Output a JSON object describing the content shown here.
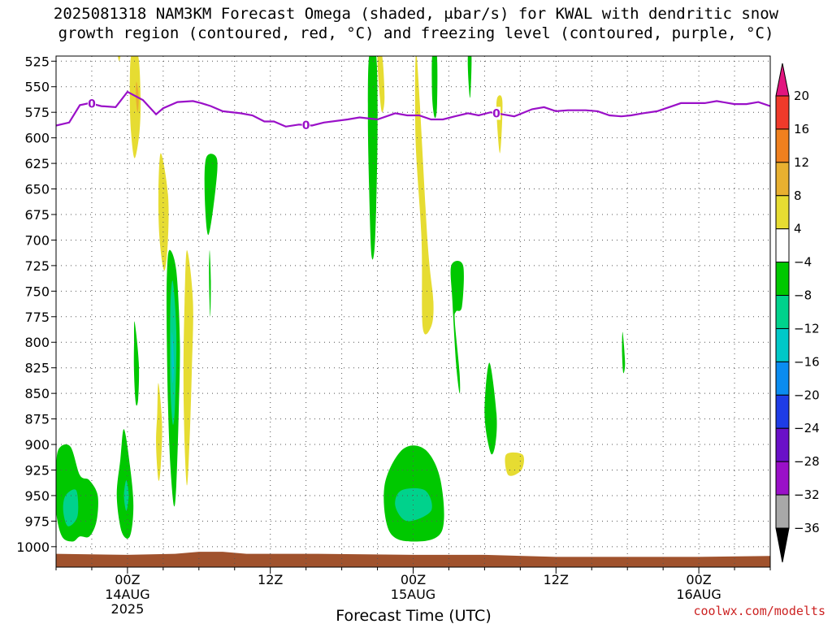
{
  "chart_data": {
    "type": "contour",
    "title": "2025081318 NAM3KM Forecast Omega (shaded, μbar/s) for KWAL with dendritic snow",
    "subtitle": "growth region (contoured, red, °C) and freezing level (contoured, purple, °C)",
    "xlabel": "Forecast Time (UTC)",
    "ylabel": "",
    "credit": "coolwx.com/modelts",
    "x_range_hours": [
      -6,
      54
    ],
    "y_range_mb": [
      520,
      1020
    ],
    "y_ticks": [
      525,
      550,
      575,
      600,
      625,
      650,
      675,
      700,
      725,
      750,
      775,
      800,
      825,
      850,
      875,
      900,
      925,
      950,
      975,
      1000
    ],
    "x_ticks": [
      {
        "hour": 0,
        "label1": "00Z",
        "label2": "14AUG",
        "label3": "2025"
      },
      {
        "hour": 12,
        "label1": "12Z",
        "label2": "",
        "label3": ""
      },
      {
        "hour": 24,
        "label1": "00Z",
        "label2": "15AUG",
        "label3": ""
      },
      {
        "hour": 36,
        "label1": "12Z",
        "label2": "",
        "label3": ""
      },
      {
        "hour": 48,
        "label1": "00Z",
        "label2": "16AUG",
        "label3": ""
      }
    ],
    "grid": true,
    "colorbar": {
      "position": "right",
      "levels": [
        20,
        16,
        12,
        8,
        4,
        -4,
        -8,
        -12,
        -16,
        -20,
        -24,
        -28,
        -32,
        -36
      ],
      "colors": [
        "#e2157f",
        "#f03a2a",
        "#f0801e",
        "#e8b030",
        "#e6dc32",
        "#ffffff",
        "#00c800",
        "#00d28c",
        "#00c8c8",
        "#0a8cf0",
        "#1e3ce6",
        "#6a10c8",
        "#9a10c8",
        "#a8a8a8",
        "#000000"
      ]
    },
    "freezing_level": {
      "label": "0",
      "color": "#9a10c8",
      "points": [
        [
          -6,
          588
        ],
        [
          -4.9,
          585
        ],
        [
          -4,
          568
        ],
        [
          -3.2,
          566
        ],
        [
          -2.2,
          569
        ],
        [
          -1,
          570
        ],
        [
          0,
          555
        ],
        [
          1.3,
          563
        ],
        [
          2.4,
          577
        ],
        [
          3,
          571
        ],
        [
          4.2,
          565
        ],
        [
          5.5,
          564
        ],
        [
          6.2,
          566
        ],
        [
          7,
          569
        ],
        [
          8,
          574
        ],
        [
          9.5,
          576
        ],
        [
          10.5,
          578
        ],
        [
          11.5,
          584
        ],
        [
          12.3,
          584
        ],
        [
          13.3,
          589
        ],
        [
          14.4,
          587
        ],
        [
          15.5,
          588
        ],
        [
          16.5,
          585
        ],
        [
          18.5,
          582
        ],
        [
          19.5,
          580
        ],
        [
          21,
          582
        ],
        [
          22.5,
          576
        ],
        [
          23.5,
          578
        ],
        [
          24.5,
          578
        ],
        [
          25.5,
          582
        ],
        [
          26.5,
          582
        ],
        [
          27.5,
          579
        ],
        [
          28.6,
          576
        ],
        [
          29.5,
          578
        ],
        [
          30.5,
          575
        ],
        [
          31.5,
          577
        ],
        [
          32.5,
          579
        ],
        [
          34,
          572
        ],
        [
          35,
          570
        ],
        [
          36,
          574
        ],
        [
          37,
          573
        ],
        [
          38.5,
          573
        ],
        [
          39.5,
          574
        ],
        [
          40.5,
          578
        ],
        [
          41.5,
          579
        ],
        [
          42.3,
          578
        ],
        [
          43.3,
          576
        ],
        [
          44.5,
          574
        ],
        [
          45.5,
          570
        ],
        [
          46.5,
          566
        ],
        [
          47.4,
          566
        ],
        [
          48.5,
          566
        ],
        [
          49.5,
          564
        ],
        [
          51,
          567
        ],
        [
          52,
          567
        ],
        [
          53,
          565
        ],
        [
          54,
          569
        ]
      ],
      "label_hours": [
        -3,
        15,
        31
      ]
    },
    "ground": {
      "color": "#a0522d",
      "top_mb": [
        [
          -6,
          1007
        ],
        [
          0,
          1008
        ],
        [
          4,
          1007
        ],
        [
          6,
          1005
        ],
        [
          8,
          1005
        ],
        [
          10,
          1007
        ],
        [
          16,
          1007
        ],
        [
          24,
          1008
        ],
        [
          30,
          1008
        ],
        [
          36,
          1010
        ],
        [
          42,
          1010
        ],
        [
          48,
          1010
        ],
        [
          54,
          1009
        ]
      ]
    },
    "series": [
      {
        "name": "",
        "level": 4,
        "color": "#e6dc32",
        "points": [
          [
            0.3,
            520
          ],
          [
            0.9,
            520
          ],
          [
            1.1,
            560
          ],
          [
            1.0,
            595
          ],
          [
            0.6,
            620
          ],
          [
            0.3,
            595
          ],
          [
            0.2,
            560
          ]
        ]
      },
      {
        "name": "",
        "level": 8,
        "color": "#e8b030",
        "points": [
          [
            0.75,
            545
          ],
          [
            0.95,
            560
          ],
          [
            0.85,
            575
          ],
          [
            0.7,
            560
          ]
        ]
      },
      {
        "name": "",
        "level": 4,
        "color": "#e6dc32",
        "points": [
          [
            -0.8,
            520
          ],
          [
            -0.6,
            520
          ],
          [
            -0.7,
            525
          ]
        ]
      },
      {
        "name": "",
        "level": 4,
        "color": "#e6dc32",
        "points": [
          [
            2.8,
            615
          ],
          [
            3.4,
            655
          ],
          [
            3.4,
            700
          ],
          [
            3.1,
            730
          ],
          [
            2.7,
            700
          ],
          [
            2.6,
            655
          ]
        ]
      },
      {
        "name": "",
        "level": 4,
        "color": "#e6dc32",
        "points": [
          [
            5,
            710
          ],
          [
            5.5,
            760
          ],
          [
            5.4,
            830
          ],
          [
            5.2,
            900
          ],
          [
            5.0,
            940
          ],
          [
            4.8,
            900
          ],
          [
            4.7,
            830
          ],
          [
            4.8,
            760
          ]
        ]
      },
      {
        "name": "",
        "level": 4,
        "color": "#e6dc32",
        "points": [
          [
            2.6,
            840
          ],
          [
            2.9,
            880
          ],
          [
            2.8,
            920
          ],
          [
            2.6,
            935
          ],
          [
            2.4,
            900
          ],
          [
            2.5,
            870
          ]
        ]
      },
      {
        "name": "",
        "level": -4,
        "color": "#00c800",
        "points": [
          [
            3.5,
            710
          ],
          [
            4.1,
            730
          ],
          [
            4.4,
            800
          ],
          [
            4.3,
            870
          ],
          [
            4.1,
            940
          ],
          [
            3.9,
            960
          ],
          [
            3.6,
            920
          ],
          [
            3.4,
            860
          ],
          [
            3.3,
            790
          ],
          [
            3.3,
            740
          ]
        ]
      },
      {
        "name": "",
        "level": -8,
        "color": "#00d28c",
        "points": [
          [
            3.8,
            740
          ],
          [
            4.1,
            790
          ],
          [
            4.0,
            860
          ],
          [
            3.8,
            880
          ],
          [
            3.6,
            840
          ],
          [
            3.6,
            770
          ]
        ]
      },
      {
        "name": "",
        "level": -12,
        "color": "#00c8c8",
        "points": [
          [
            3.75,
            790
          ],
          [
            3.9,
            820
          ],
          [
            3.8,
            840
          ],
          [
            3.7,
            815
          ]
        ]
      },
      {
        "name": "",
        "level": -4,
        "color": "#00c800",
        "points": [
          [
            6.6,
            620
          ],
          [
            7.5,
            620
          ],
          [
            7.4,
            650
          ],
          [
            6.8,
            695
          ],
          [
            6.5,
            660
          ]
        ]
      },
      {
        "name": "",
        "level": -4,
        "color": "#00c800",
        "points": [
          [
            6.9,
            710
          ],
          [
            7.0,
            740
          ],
          [
            6.95,
            775
          ],
          [
            6.85,
            740
          ]
        ]
      },
      {
        "name": "",
        "level": -4,
        "color": "#00c800",
        "points": [
          [
            0.6,
            780
          ],
          [
            0.95,
            820
          ],
          [
            0.9,
            855
          ],
          [
            0.7,
            860
          ],
          [
            0.55,
            830
          ],
          [
            0.55,
            800
          ]
        ]
      },
      {
        "name": "",
        "level": -4,
        "color": "#00c800",
        "points": [
          [
            -5.8,
            905
          ],
          [
            -4.8,
            902
          ],
          [
            -4.0,
            930
          ],
          [
            -3.2,
            935
          ],
          [
            -2.5,
            950
          ],
          [
            -2.6,
            975
          ],
          [
            -3.2,
            990
          ],
          [
            -4.0,
            990
          ],
          [
            -4.6,
            995
          ],
          [
            -5.5,
            990
          ],
          [
            -6,
            965
          ],
          [
            -6,
            930
          ]
        ]
      },
      {
        "name": "",
        "level": -8,
        "color": "#00d28c",
        "points": [
          [
            -5.2,
            950
          ],
          [
            -4.3,
            945
          ],
          [
            -4.2,
            970
          ],
          [
            -5.0,
            980
          ],
          [
            -5.4,
            965
          ]
        ]
      },
      {
        "name": "",
        "level": -4,
        "color": "#00c800",
        "points": [
          [
            -0.3,
            885
          ],
          [
            0.2,
            920
          ],
          [
            0.5,
            960
          ],
          [
            0.2,
            990
          ],
          [
            -0.5,
            985
          ],
          [
            -0.9,
            950
          ],
          [
            -0.6,
            915
          ]
        ]
      },
      {
        "name": "",
        "level": -8,
        "color": "#00d28c",
        "points": [
          [
            -0.1,
            935
          ],
          [
            0.1,
            950
          ],
          [
            -0.1,
            965
          ],
          [
            -0.3,
            950
          ]
        ]
      },
      {
        "name": "",
        "level": 4,
        "color": "#e6dc32",
        "points": [
          [
            21,
            520
          ],
          [
            21.4,
            520
          ],
          [
            21.6,
            560
          ],
          [
            21.4,
            575
          ],
          [
            21.2,
            560
          ]
        ]
      },
      {
        "name": "",
        "level": -4,
        "color": "#00c800",
        "points": [
          [
            20.3,
            520
          ],
          [
            20.9,
            520
          ],
          [
            21.0,
            600
          ],
          [
            20.8,
            700
          ],
          [
            20.5,
            715
          ],
          [
            20.3,
            650
          ],
          [
            20.2,
            580
          ]
        ]
      },
      {
        "name": "",
        "level": 4,
        "color": "#e6dc32",
        "points": [
          [
            24.3,
            520
          ],
          [
            25.2,
            700
          ],
          [
            25.7,
            760
          ],
          [
            25.5,
            785
          ],
          [
            24.8,
            785
          ],
          [
            24.7,
            700
          ],
          [
            24.2,
            600
          ]
        ]
      },
      {
        "name": "",
        "level": -4,
        "color": "#00c800",
        "points": [
          [
            25.6,
            520
          ],
          [
            26.0,
            520
          ],
          [
            26.0,
            570
          ],
          [
            25.8,
            580
          ],
          [
            25.6,
            560
          ]
        ]
      },
      {
        "name": "",
        "level": -4,
        "color": "#00c800",
        "points": [
          [
            28.6,
            520
          ],
          [
            28.9,
            520
          ],
          [
            28.8,
            560
          ],
          [
            28.65,
            545
          ]
        ]
      },
      {
        "name": "",
        "level": 4,
        "color": "#e6dc32",
        "points": [
          [
            31.1,
            560
          ],
          [
            31.5,
            565
          ],
          [
            31.3,
            615
          ],
          [
            31.0,
            575
          ]
        ]
      },
      {
        "name": "",
        "level": -4,
        "color": "#00c800",
        "points": [
          [
            27.2,
            725
          ],
          [
            28.2,
            725
          ],
          [
            28.1,
            765
          ],
          [
            27.6,
            770
          ],
          [
            27.5,
            780
          ],
          [
            27.9,
            830
          ],
          [
            27.9,
            850
          ],
          [
            27.6,
            820
          ],
          [
            27.3,
            760
          ]
        ]
      },
      {
        "name": "",
        "level": -4,
        "color": "#00c800",
        "points": [
          [
            30.4,
            820
          ],
          [
            31.0,
            870
          ],
          [
            30.9,
            900
          ],
          [
            30.5,
            908
          ],
          [
            30.0,
            870
          ]
        ]
      },
      {
        "name": "",
        "level": 4,
        "color": "#e6dc32",
        "points": [
          [
            31.8,
            910
          ],
          [
            33.2,
            910
          ],
          [
            33.1,
            925
          ],
          [
            32.0,
            930
          ]
        ]
      },
      {
        "name": "",
        "level": -4,
        "color": "#00c800",
        "points": [
          [
            41.6,
            790
          ],
          [
            41.8,
            820
          ],
          [
            41.65,
            830
          ],
          [
            41.55,
            810
          ]
        ]
      },
      {
        "name": "",
        "level": -4,
        "color": "#00c800",
        "points": [
          [
            23.1,
            905
          ],
          [
            25.0,
            905
          ],
          [
            26.3,
            935
          ],
          [
            26.4,
            985
          ],
          [
            24.0,
            995
          ],
          [
            22.0,
            985
          ],
          [
            21.6,
            940
          ]
        ]
      },
      {
        "name": "",
        "level": -8,
        "color": "#00d28c",
        "points": [
          [
            23.0,
            945
          ],
          [
            25.0,
            945
          ],
          [
            25.5,
            965
          ],
          [
            23.5,
            975
          ],
          [
            22.5,
            960
          ]
        ]
      }
    ]
  }
}
